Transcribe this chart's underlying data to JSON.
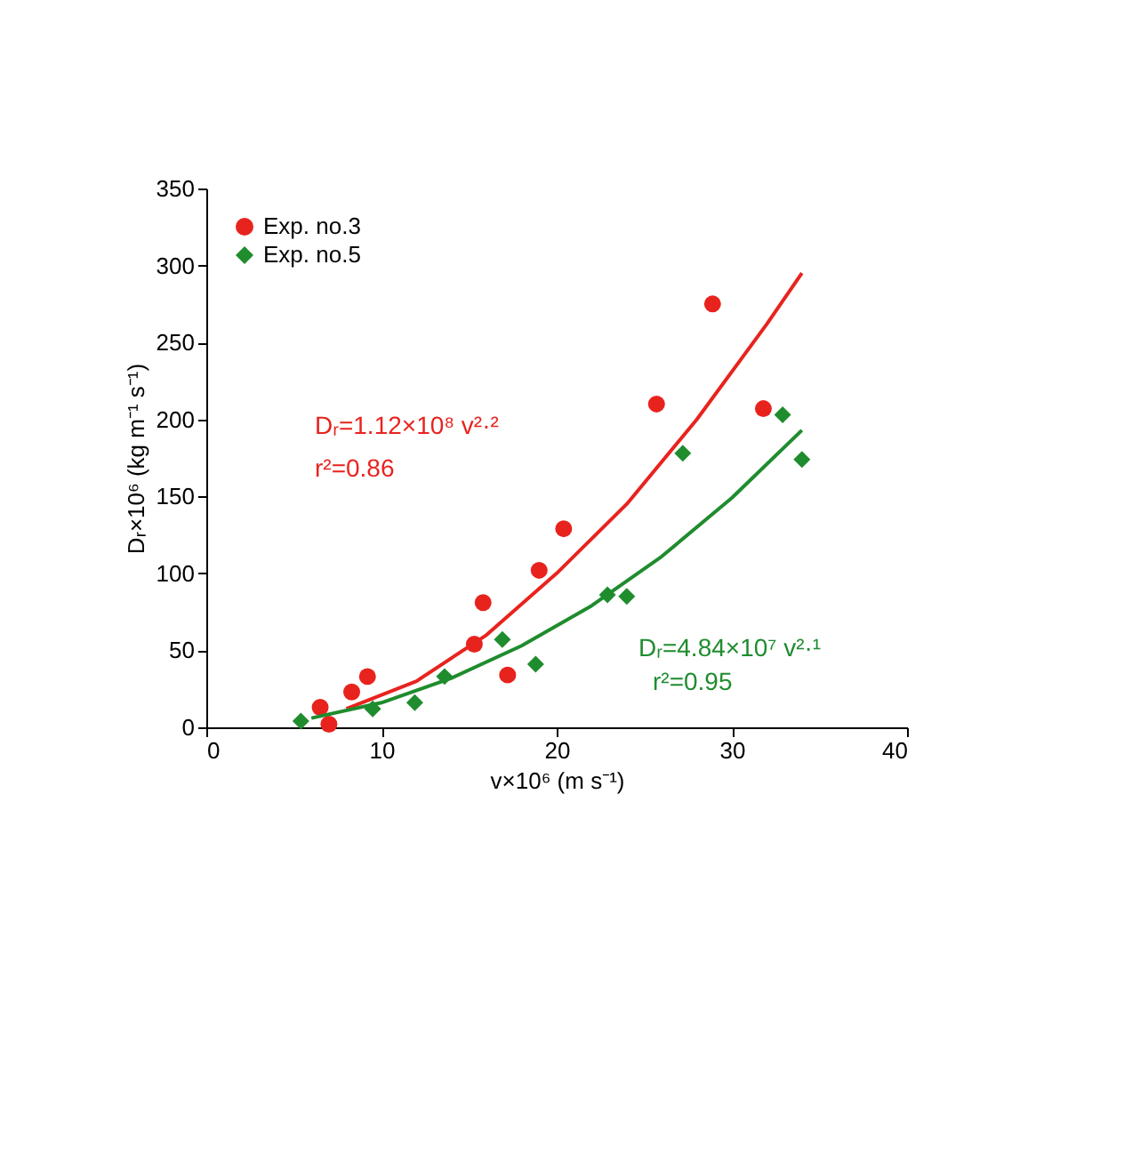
{
  "chart_data": {
    "type": "scatter",
    "xlabel": "v×10⁶ (m s⁻¹)",
    "ylabel": "Dᵣ×10⁶ (kg m⁻¹ s⁻¹)",
    "xlim": [
      0,
      40
    ],
    "xticks": [
      0,
      10,
      20,
      30,
      40
    ],
    "ylim": [
      0,
      350
    ],
    "yticks": [
      0,
      50,
      100,
      150,
      200,
      250,
      300,
      350
    ],
    "grid": false,
    "legend": "top left",
    "series": [
      {
        "name": "Exp. no.3",
        "color": "#e8231e",
        "marker": "circle",
        "x": [
          28.9,
          25.7,
          31.8,
          20.4,
          19.0,
          15.8,
          15.3,
          17.2,
          9.2,
          8.3,
          6.5,
          7.0
        ],
        "values": [
          275,
          210,
          207,
          129,
          102,
          81,
          54,
          34,
          33,
          23,
          13,
          2
        ]
      },
      {
        "name": "Exp. no.5",
        "color": "#1f8c2e",
        "marker": "diamond",
        "x": [
          27.2,
          32.9,
          34.0,
          22.9,
          24.0,
          16.9,
          18.8,
          13.6,
          11.9,
          9.5,
          5.4
        ],
        "values": [
          178,
          203,
          174,
          86,
          85,
          57,
          41,
          33,
          16,
          12,
          4
        ]
      },
      {
        "type": "line",
        "color": "#e8231e",
        "x": [
          8,
          12,
          16,
          20,
          24,
          28,
          32,
          34
        ],
        "values": [
          12,
          30,
          60,
          100,
          145,
          200,
          262,
          295
        ]
      },
      {
        "type": "line",
        "color": "#1f8c2e",
        "x": [
          6,
          10,
          14,
          18,
          22,
          26,
          30,
          34
        ],
        "values": [
          6,
          16,
          32,
          53,
          79,
          111,
          149,
          193
        ]
      }
    ],
    "annotations": [
      "Dᵣ=1.12×10⁸ v²·²",
      "r²=0.86",
      "Dᵣ=4.84×10⁷ v²·¹",
      "r²=0.95"
    ]
  }
}
